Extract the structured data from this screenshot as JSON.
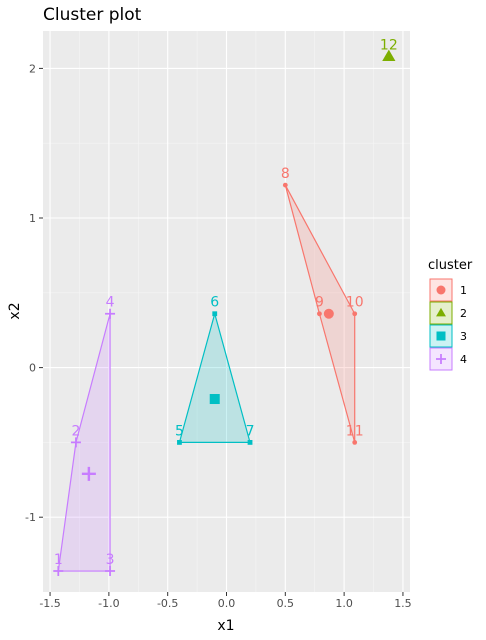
{
  "chart_data": {
    "type": "scatter",
    "title": "Cluster plot",
    "xlabel": "x1",
    "ylabel": "x2",
    "xlim": [
      -1.56,
      1.56
    ],
    "ylim": [
      -1.5,
      2.25
    ],
    "x_ticks": [
      -1.5,
      -1.0,
      -0.5,
      0.0,
      0.5,
      1.0,
      1.5
    ],
    "x_tick_labels": [
      "-1.5",
      "-1.0",
      "-0.5",
      "0.0",
      "0.5",
      "1.0",
      "1.5"
    ],
    "y_ticks": [
      -1,
      0,
      1,
      2
    ],
    "y_tick_labels": [
      "-1",
      "0",
      "1",
      "2"
    ],
    "grid": true,
    "legend": {
      "title": "cluster",
      "position": "right"
    },
    "clusters": [
      {
        "name": "1",
        "color": "#F8766D",
        "shape": "circle",
        "points": [
          {
            "label": "8",
            "x": 0.5,
            "y": 1.22
          },
          {
            "label": "9",
            "x": 0.79,
            "y": 0.36
          },
          {
            "label": "10",
            "x": 1.09,
            "y": 0.36
          },
          {
            "label": "11",
            "x": 1.09,
            "y": -0.5
          }
        ],
        "hull": [
          "8",
          "10",
          "11",
          "9"
        ],
        "center": {
          "x": 0.87,
          "y": 0.36
        }
      },
      {
        "name": "2",
        "color": "#7CAE00",
        "shape": "triangle",
        "points": [
          {
            "label": "12",
            "x": 1.38,
            "y": 2.08
          }
        ],
        "hull": [],
        "center": {
          "x": 1.38,
          "y": 2.08
        }
      },
      {
        "name": "3",
        "color": "#00BFC4",
        "shape": "square",
        "points": [
          {
            "label": "5",
            "x": -0.4,
            "y": -0.5
          },
          {
            "label": "6",
            "x": -0.1,
            "y": 0.36
          },
          {
            "label": "7",
            "x": 0.2,
            "y": -0.5
          }
        ],
        "hull": [
          "5",
          "6",
          "7"
        ],
        "center": {
          "x": -0.1,
          "y": -0.21
        }
      },
      {
        "name": "4",
        "color": "#C77CFF",
        "shape": "cross",
        "points": [
          {
            "label": "1",
            "x": -1.43,
            "y": -1.36
          },
          {
            "label": "2",
            "x": -1.28,
            "y": -0.5
          },
          {
            "label": "3",
            "x": -0.99,
            "y": -1.36
          },
          {
            "label": "4",
            "x": -0.99,
            "y": 0.36
          }
        ],
        "hull": [
          "1",
          "2",
          "4",
          "3"
        ],
        "center": {
          "x": -1.17,
          "y": -0.71
        }
      }
    ]
  }
}
